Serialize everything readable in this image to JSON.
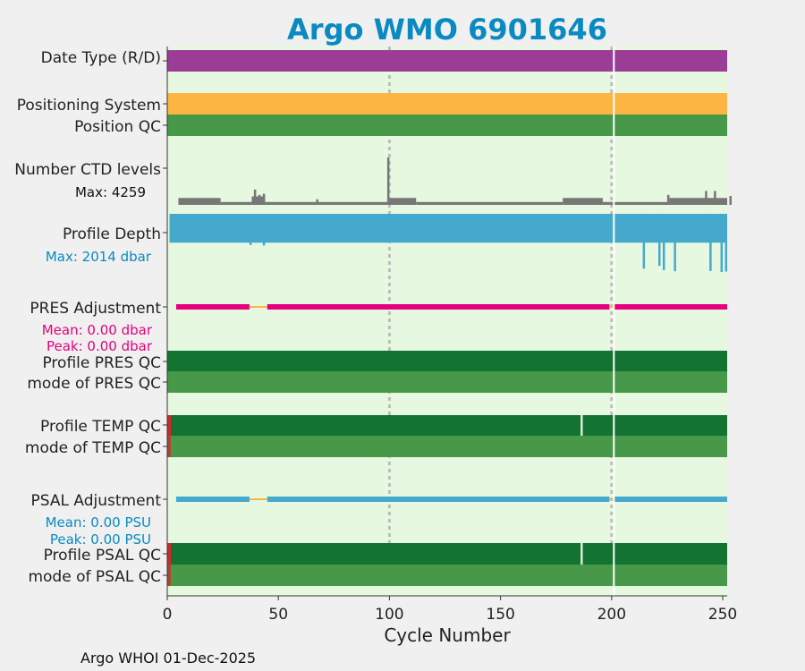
{
  "chart_data": {
    "type": "timeline",
    "title": "Argo WMO 6901646",
    "xlabel": "Cycle Number",
    "xlim": [
      0,
      252
    ],
    "xticks": [
      "0",
      "50",
      "100",
      "150",
      "200",
      "250"
    ],
    "xtick_values": [
      0,
      50,
      100,
      150,
      200,
      250
    ],
    "marker_cycles": [
      100,
      200
    ],
    "footer": "Argo WHOI 01-Dec-2025",
    "colors": {
      "title": "#0a8ac0",
      "panel_bg": "#e6f8e0",
      "date_type": "#9b3d96",
      "positioning": "#fcb542",
      "qc_good": "#48984a",
      "qc_profile_good": "#137330",
      "qc_bad": "#d62728",
      "ctd": "#777777",
      "depth": "#45a9ce",
      "pres_adj": "#e6007e",
      "psal_adj": "#45a9ce",
      "gap_line": "#fcb542",
      "white_line": "#ffffff"
    },
    "rows": {
      "date_type": "Date Type (R/D)",
      "positioning_system": "Positioning System",
      "position_qc": "Position QC",
      "ctd_levels": "Number CTD levels",
      "ctd_max": "Max: 4259",
      "profile_depth": "Profile Depth",
      "depth_max": "Max: 2014 dbar",
      "pres_adjustment": "PRES Adjustment",
      "pres_mean": "Mean: 0.00 dbar",
      "pres_peak": "Peak: 0.00 dbar",
      "profile_pres_qc": "Profile PRES QC",
      "mode_pres_qc": "mode of PRES QC",
      "profile_temp_qc": "Profile TEMP QC",
      "mode_temp_qc": "mode of TEMP QC",
      "psal_adjustment": "PSAL Adjustment",
      "psal_mean": "Mean: 0.00 PSU",
      "psal_peak": "Peak: 0.00 PSU",
      "profile_psal_qc": "Profile PSAL QC",
      "mode_psal_qc": "mode of PSAL QC"
    },
    "ctd_max_value": 4259,
    "ctd_segments": [
      {
        "from": 5,
        "to": 24,
        "value": 620
      },
      {
        "from": 24,
        "to": 38,
        "value": 260
      },
      {
        "from": 38,
        "to": 44,
        "value": 760
      },
      {
        "from": 44,
        "to": 100,
        "value": 260
      },
      {
        "from": 100,
        "to": 112,
        "value": 620
      },
      {
        "from": 112,
        "to": 178,
        "value": 260
      },
      {
        "from": 178,
        "to": 196,
        "value": 620
      },
      {
        "from": 196,
        "to": 226,
        "value": 260
      },
      {
        "from": 226,
        "to": 252,
        "value": 620
      }
    ],
    "ctd_spikes": [
      {
        "cycle": 39,
        "value": 1380
      },
      {
        "cycle": 41,
        "value": 900
      },
      {
        "cycle": 43,
        "value": 1000
      },
      {
        "cycle": 99,
        "value": 4259
      },
      {
        "cycle": 67,
        "value": 500
      },
      {
        "cycle": 225,
        "value": 900
      },
      {
        "cycle": 242,
        "value": 1250
      },
      {
        "cycle": 246,
        "value": 1250
      },
      {
        "cycle": 253,
        "value": 800
      }
    ],
    "depth_max_value": 2014,
    "depth_base_value": 1000,
    "depth_ext": [
      {
        "cycle": 37,
        "value": 1080
      },
      {
        "cycle": 43,
        "value": 1100
      },
      {
        "cycle": 214,
        "value": 1900
      },
      {
        "cycle": 221,
        "value": 1800
      },
      {
        "cycle": 223,
        "value": 1950
      },
      {
        "cycle": 228,
        "value": 1990
      },
      {
        "cycle": 244,
        "value": 1980
      },
      {
        "cycle": 249,
        "value": 2014
      },
      {
        "cycle": 251,
        "value": 2000
      }
    ],
    "adjust_segments": [
      {
        "from": 4,
        "to": 37,
        "kind": "adj"
      },
      {
        "from": 37,
        "to": 45,
        "kind": "gap"
      },
      {
        "from": 45,
        "to": 199,
        "kind": "adj"
      },
      {
        "from": 199,
        "to": 201,
        "kind": "gap"
      },
      {
        "from": 201,
        "to": 252,
        "kind": "adj"
      }
    ],
    "temp_psal_breaks": [
      186
    ],
    "temp_psal_bad": [
      0
    ]
  }
}
